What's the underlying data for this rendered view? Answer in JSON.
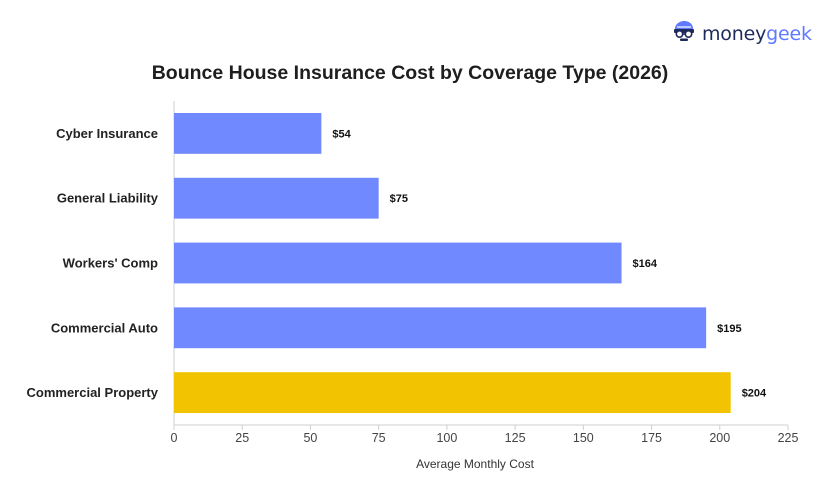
{
  "brand": {
    "name_part1": "money",
    "name_part2": "geek",
    "logo_icon": "nerd-face-icon"
  },
  "colors": {
    "primary_bar": "#7189ff",
    "highlight_bar": "#f2c300",
    "brand_dark": "#1f2a5c",
    "brand_accent": "#5f79ff"
  },
  "chart_data": {
    "type": "bar",
    "orientation": "horizontal",
    "title": "Bounce House Insurance Cost by Coverage Type (2026)",
    "xlabel": "Average Monthly Cost",
    "ylabel": "",
    "categories": [
      "Cyber Insurance",
      "General Liability",
      "Workers' Comp",
      "Commercial Auto",
      "Commercial Property"
    ],
    "values": [
      54,
      75,
      164,
      195,
      204
    ],
    "value_labels": [
      "$54",
      "$75",
      "$164",
      "$195",
      "$204"
    ],
    "highlighted": [
      false,
      false,
      false,
      false,
      true
    ],
    "xlim": [
      0,
      225
    ],
    "xticks": [
      0,
      25,
      50,
      75,
      100,
      125,
      150,
      175,
      200,
      225
    ],
    "grid": false,
    "legend": "none"
  }
}
